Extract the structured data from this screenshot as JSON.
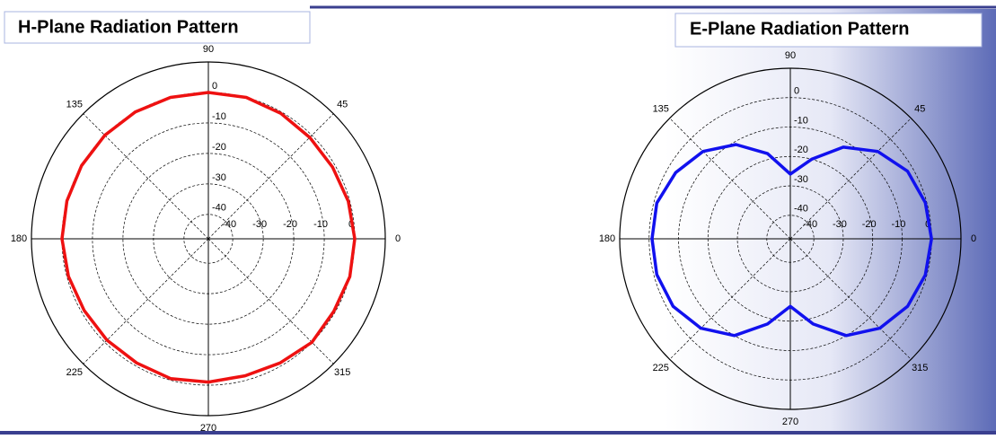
{
  "chart_data": [
    {
      "type": "polar",
      "title": "H-Plane Radiation Pattern",
      "color": "#ee1111",
      "theta": [
        0,
        15,
        30,
        45,
        60,
        75,
        90,
        105,
        120,
        135,
        150,
        165,
        180,
        195,
        210,
        225,
        240,
        255,
        270,
        285,
        300,
        315,
        330,
        345
      ],
      "r": [
        0,
        -0.5,
        -1,
        -1,
        -0.5,
        0,
        0,
        0,
        0,
        0,
        0,
        0,
        0,
        -0.5,
        -1,
        -1,
        -1,
        -0.5,
        -1,
        -1.5,
        -1,
        0,
        -0.5,
        0
      ],
      "rlim": [
        -48,
        10
      ],
      "rticks": [
        -40,
        -30,
        -20,
        -10,
        0
      ],
      "angle_ticks": [
        0,
        45,
        90,
        135,
        180,
        225,
        270,
        315
      ]
    },
    {
      "type": "polar",
      "title": "E-Plane Radiation Pattern",
      "color": "#1111ee",
      "theta": [
        0,
        15,
        30,
        45,
        60,
        75,
        90,
        105,
        120,
        135,
        150,
        165,
        180,
        195,
        210,
        225,
        240,
        255,
        270,
        285,
        300,
        315,
        330,
        345
      ],
      "r": [
        0,
        -0.5,
        -2,
        -6,
        -12,
        -20,
        -26,
        -18,
        -11,
        -6,
        -3,
        -1,
        -1,
        -1,
        -2,
        -5,
        -10,
        -18,
        -25,
        -18,
        -10,
        -5,
        -2,
        -0.5
      ],
      "rlim": [
        -48,
        10
      ],
      "rticks": [
        -40,
        -30,
        -20,
        -10,
        0
      ],
      "angle_ticks": [
        0,
        45,
        90,
        135,
        180,
        225,
        270,
        315
      ]
    }
  ]
}
